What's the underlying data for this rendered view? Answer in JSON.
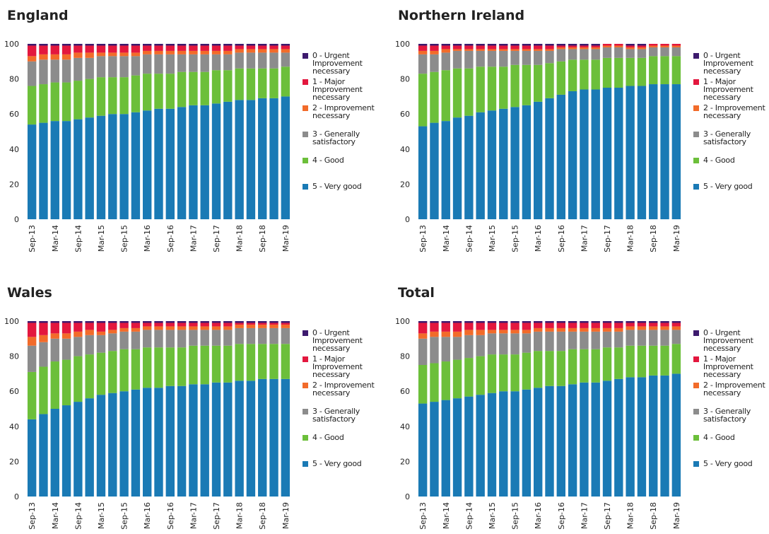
{
  "chart_data": [
    {
      "type": "stacked-bar",
      "title": "England",
      "categories": [
        "Sep-13",
        null,
        "Mar-14",
        null,
        "Sep-14",
        null,
        "Mar-15",
        null,
        "Sep-15",
        null,
        "Mar-16",
        null,
        "Sep-16",
        null,
        "Mar-17",
        null,
        "Sep-17",
        null,
        "Mar-18",
        null,
        "Sep-18",
        null,
        "Mar-19"
      ],
      "ylim": [
        0,
        100
      ],
      "yticks": [
        0,
        20,
        40,
        60,
        80,
        100
      ],
      "series": [
        {
          "name": "0 - Urgent Improvement necessary",
          "color": "#3d1a6e",
          "values": [
            1,
            1,
            1,
            1,
            1,
            1,
            1,
            1,
            1,
            1,
            1,
            1,
            1,
            1,
            1,
            1,
            1,
            1,
            1,
            1,
            1,
            1,
            1
          ]
        },
        {
          "name": "1 - Major Improvement necessary",
          "color": "#e3173e",
          "values": [
            6,
            5,
            5,
            5,
            4,
            4,
            4,
            4,
            4,
            4,
            3,
            3,
            3,
            3,
            3,
            3,
            3,
            3,
            2,
            2,
            2,
            2,
            2
          ]
        },
        {
          "name": "2 - Improvement necessary",
          "color": "#f26b2a",
          "values": [
            3,
            3,
            3,
            3,
            3,
            3,
            2,
            2,
            2,
            2,
            2,
            2,
            2,
            2,
            2,
            2,
            2,
            2,
            2,
            2,
            2,
            2,
            2
          ]
        },
        {
          "name": "3 - Generally satisfactory",
          "color": "#8c8c8c",
          "values": [
            14,
            14,
            13,
            13,
            13,
            12,
            12,
            12,
            12,
            11,
            11,
            11,
            11,
            10,
            10,
            10,
            9,
            9,
            9,
            9,
            9,
            9,
            8
          ]
        },
        {
          "name": "4 - Good",
          "color": "#6cbf3a",
          "values": [
            22,
            22,
            22,
            22,
            22,
            22,
            22,
            21,
            21,
            21,
            21,
            20,
            20,
            20,
            19,
            19,
            19,
            18,
            18,
            18,
            17,
            17,
            17
          ]
        },
        {
          "name": "5 - Very good",
          "color": "#1a7ab5",
          "values": [
            54,
            55,
            56,
            56,
            57,
            58,
            59,
            60,
            60,
            61,
            62,
            63,
            63,
            64,
            65,
            65,
            66,
            67,
            68,
            68,
            69,
            69,
            70
          ]
        }
      ]
    },
    {
      "type": "stacked-bar",
      "title": "Northern Ireland",
      "categories": [
        "Sep-13",
        null,
        "Mar-14",
        null,
        "Sep-14",
        null,
        "Mar-15",
        null,
        "Sep-15",
        null,
        "Mar-16",
        null,
        "Sep-16",
        null,
        "Mar-17",
        null,
        "Sep-17",
        null,
        "Mar-18",
        null,
        "Sep-18",
        null,
        "Mar-19"
      ],
      "ylim": [
        0,
        100
      ],
      "yticks": [
        0,
        20,
        40,
        60,
        80,
        100
      ],
      "series": [
        {
          "name": "0 - Urgent Improvement necessary",
          "color": "#3d1a6e",
          "values": [
            1,
            1,
            1,
            1,
            1,
            1,
            1,
            1,
            1,
            1,
            1,
            1,
            1,
            1,
            1,
            1,
            0,
            0,
            1,
            1,
            0,
            0,
            0
          ]
        },
        {
          "name": "1 - Major Improvement necessary",
          "color": "#e3173e",
          "values": [
            3,
            3,
            2,
            2,
            2,
            2,
            2,
            2,
            2,
            2,
            2,
            2,
            1,
            1,
            1,
            1,
            1,
            1,
            1,
            1,
            1,
            1,
            1
          ]
        },
        {
          "name": "2 - Improvement necessary",
          "color": "#f26b2a",
          "values": [
            2,
            2,
            2,
            1,
            1,
            1,
            1,
            1,
            1,
            1,
            1,
            1,
            1,
            1,
            1,
            1,
            1,
            1,
            1,
            1,
            1,
            1,
            1
          ]
        },
        {
          "name": "3 - Generally satisfactory",
          "color": "#8c8c8c",
          "values": [
            11,
            10,
            10,
            10,
            10,
            9,
            9,
            9,
            8,
            8,
            8,
            7,
            7,
            6,
            6,
            6,
            6,
            6,
            5,
            5,
            5,
            5,
            5
          ]
        },
        {
          "name": "4 - Good",
          "color": "#6cbf3a",
          "values": [
            30,
            29,
            29,
            28,
            27,
            26,
            25,
            24,
            24,
            23,
            21,
            20,
            19,
            18,
            17,
            17,
            17,
            17,
            16,
            16,
            16,
            16,
            16
          ]
        },
        {
          "name": "5 - Very good",
          "color": "#1a7ab5",
          "values": [
            53,
            55,
            56,
            58,
            59,
            61,
            62,
            63,
            64,
            65,
            67,
            69,
            71,
            73,
            74,
            74,
            75,
            75,
            76,
            76,
            77,
            77,
            77
          ]
        }
      ]
    },
    {
      "type": "stacked-bar",
      "title": "Wales",
      "categories": [
        "Sep-13",
        null,
        "Mar-14",
        null,
        "Sep-14",
        null,
        "Mar-15",
        null,
        "Sep-15",
        null,
        "Mar-16",
        null,
        "Sep-16",
        null,
        "Mar-17",
        null,
        "Sep-17",
        null,
        "Mar-18",
        null,
        "Sep-18",
        null,
        "Mar-19"
      ],
      "ylim": [
        0,
        100
      ],
      "yticks": [
        0,
        20,
        40,
        60,
        80,
        100
      ],
      "series": [
        {
          "name": "0 - Urgent Improvement necessary",
          "color": "#3d1a6e",
          "values": [
            1,
            1,
            1,
            1,
            1,
            1,
            1,
            1,
            1,
            1,
            1,
            1,
            1,
            1,
            1,
            1,
            1,
            1,
            1,
            1,
            1,
            1,
            1
          ]
        },
        {
          "name": "1 - Major Improvement necessary",
          "color": "#e3173e",
          "values": [
            8,
            7,
            6,
            6,
            5,
            4,
            5,
            4,
            3,
            3,
            2,
            2,
            2,
            2,
            2,
            2,
            2,
            2,
            1,
            1,
            1,
            1,
            1
          ]
        },
        {
          "name": "2 - Improvement necessary",
          "color": "#f26b2a",
          "values": [
            5,
            4,
            3,
            3,
            3,
            3,
            2,
            2,
            2,
            2,
            2,
            2,
            2,
            2,
            2,
            2,
            2,
            2,
            2,
            2,
            2,
            2,
            2
          ]
        },
        {
          "name": "3 - Generally satisfactory",
          "color": "#8c8c8c",
          "values": [
            15,
            14,
            13,
            12,
            11,
            11,
            10,
            10,
            10,
            10,
            10,
            10,
            10,
            10,
            9,
            9,
            9,
            9,
            9,
            9,
            9,
            9,
            9
          ]
        },
        {
          "name": "4 - Good",
          "color": "#6cbf3a",
          "values": [
            27,
            27,
            27,
            26,
            26,
            25,
            24,
            24,
            24,
            23,
            23,
            23,
            22,
            22,
            22,
            22,
            21,
            21,
            21,
            21,
            20,
            20,
            20
          ]
        },
        {
          "name": "5 - Very good",
          "color": "#1a7ab5",
          "values": [
            44,
            47,
            50,
            52,
            54,
            56,
            58,
            59,
            60,
            61,
            62,
            62,
            63,
            63,
            64,
            64,
            65,
            65,
            66,
            66,
            67,
            67,
            67
          ]
        }
      ]
    },
    {
      "type": "stacked-bar",
      "title": "Total",
      "categories": [
        "Sep-13",
        null,
        "Mar-14",
        null,
        "Sep-14",
        null,
        "Mar-15",
        null,
        "Sep-15",
        null,
        "Mar-16",
        null,
        "Sep-16",
        null,
        "Mar-17",
        null,
        "Sep-17",
        null,
        "Mar-18",
        null,
        "Sep-18",
        null,
        "Mar-19"
      ],
      "ylim": [
        0,
        100
      ],
      "yticks": [
        0,
        20,
        40,
        60,
        80,
        100
      ],
      "series": [
        {
          "name": "0 - Urgent Improvement necessary",
          "color": "#3d1a6e",
          "values": [
            1,
            1,
            1,
            1,
            1,
            1,
            1,
            1,
            1,
            1,
            1,
            1,
            1,
            1,
            1,
            1,
            1,
            1,
            1,
            1,
            1,
            1,
            1
          ]
        },
        {
          "name": "1 - Major Improvement necessary",
          "color": "#e3173e",
          "values": [
            6,
            5,
            5,
            5,
            4,
            4,
            4,
            4,
            4,
            4,
            3,
            3,
            3,
            3,
            3,
            3,
            3,
            3,
            2,
            2,
            2,
            2,
            2
          ]
        },
        {
          "name": "2 - Improvement necessary",
          "color": "#f26b2a",
          "values": [
            3,
            3,
            3,
            3,
            3,
            3,
            2,
            2,
            2,
            2,
            2,
            2,
            2,
            2,
            2,
            2,
            2,
            2,
            2,
            2,
            2,
            2,
            2
          ]
        },
        {
          "name": "3 - Generally satisfactory",
          "color": "#8c8c8c",
          "values": [
            15,
            15,
            14,
            13,
            13,
            12,
            12,
            12,
            12,
            11,
            11,
            11,
            11,
            10,
            10,
            10,
            9,
            9,
            9,
            9,
            9,
            9,
            8
          ]
        },
        {
          "name": "4 - Good",
          "color": "#6cbf3a",
          "values": [
            22,
            22,
            22,
            22,
            22,
            22,
            22,
            21,
            21,
            21,
            21,
            20,
            20,
            20,
            19,
            19,
            19,
            18,
            18,
            18,
            17,
            17,
            17
          ]
        },
        {
          "name": "5 - Very good",
          "color": "#1a7ab5",
          "values": [
            53,
            54,
            55,
            56,
            57,
            58,
            59,
            60,
            60,
            61,
            62,
            63,
            63,
            64,
            65,
            65,
            66,
            67,
            68,
            68,
            69,
            69,
            70
          ]
        }
      ]
    }
  ]
}
